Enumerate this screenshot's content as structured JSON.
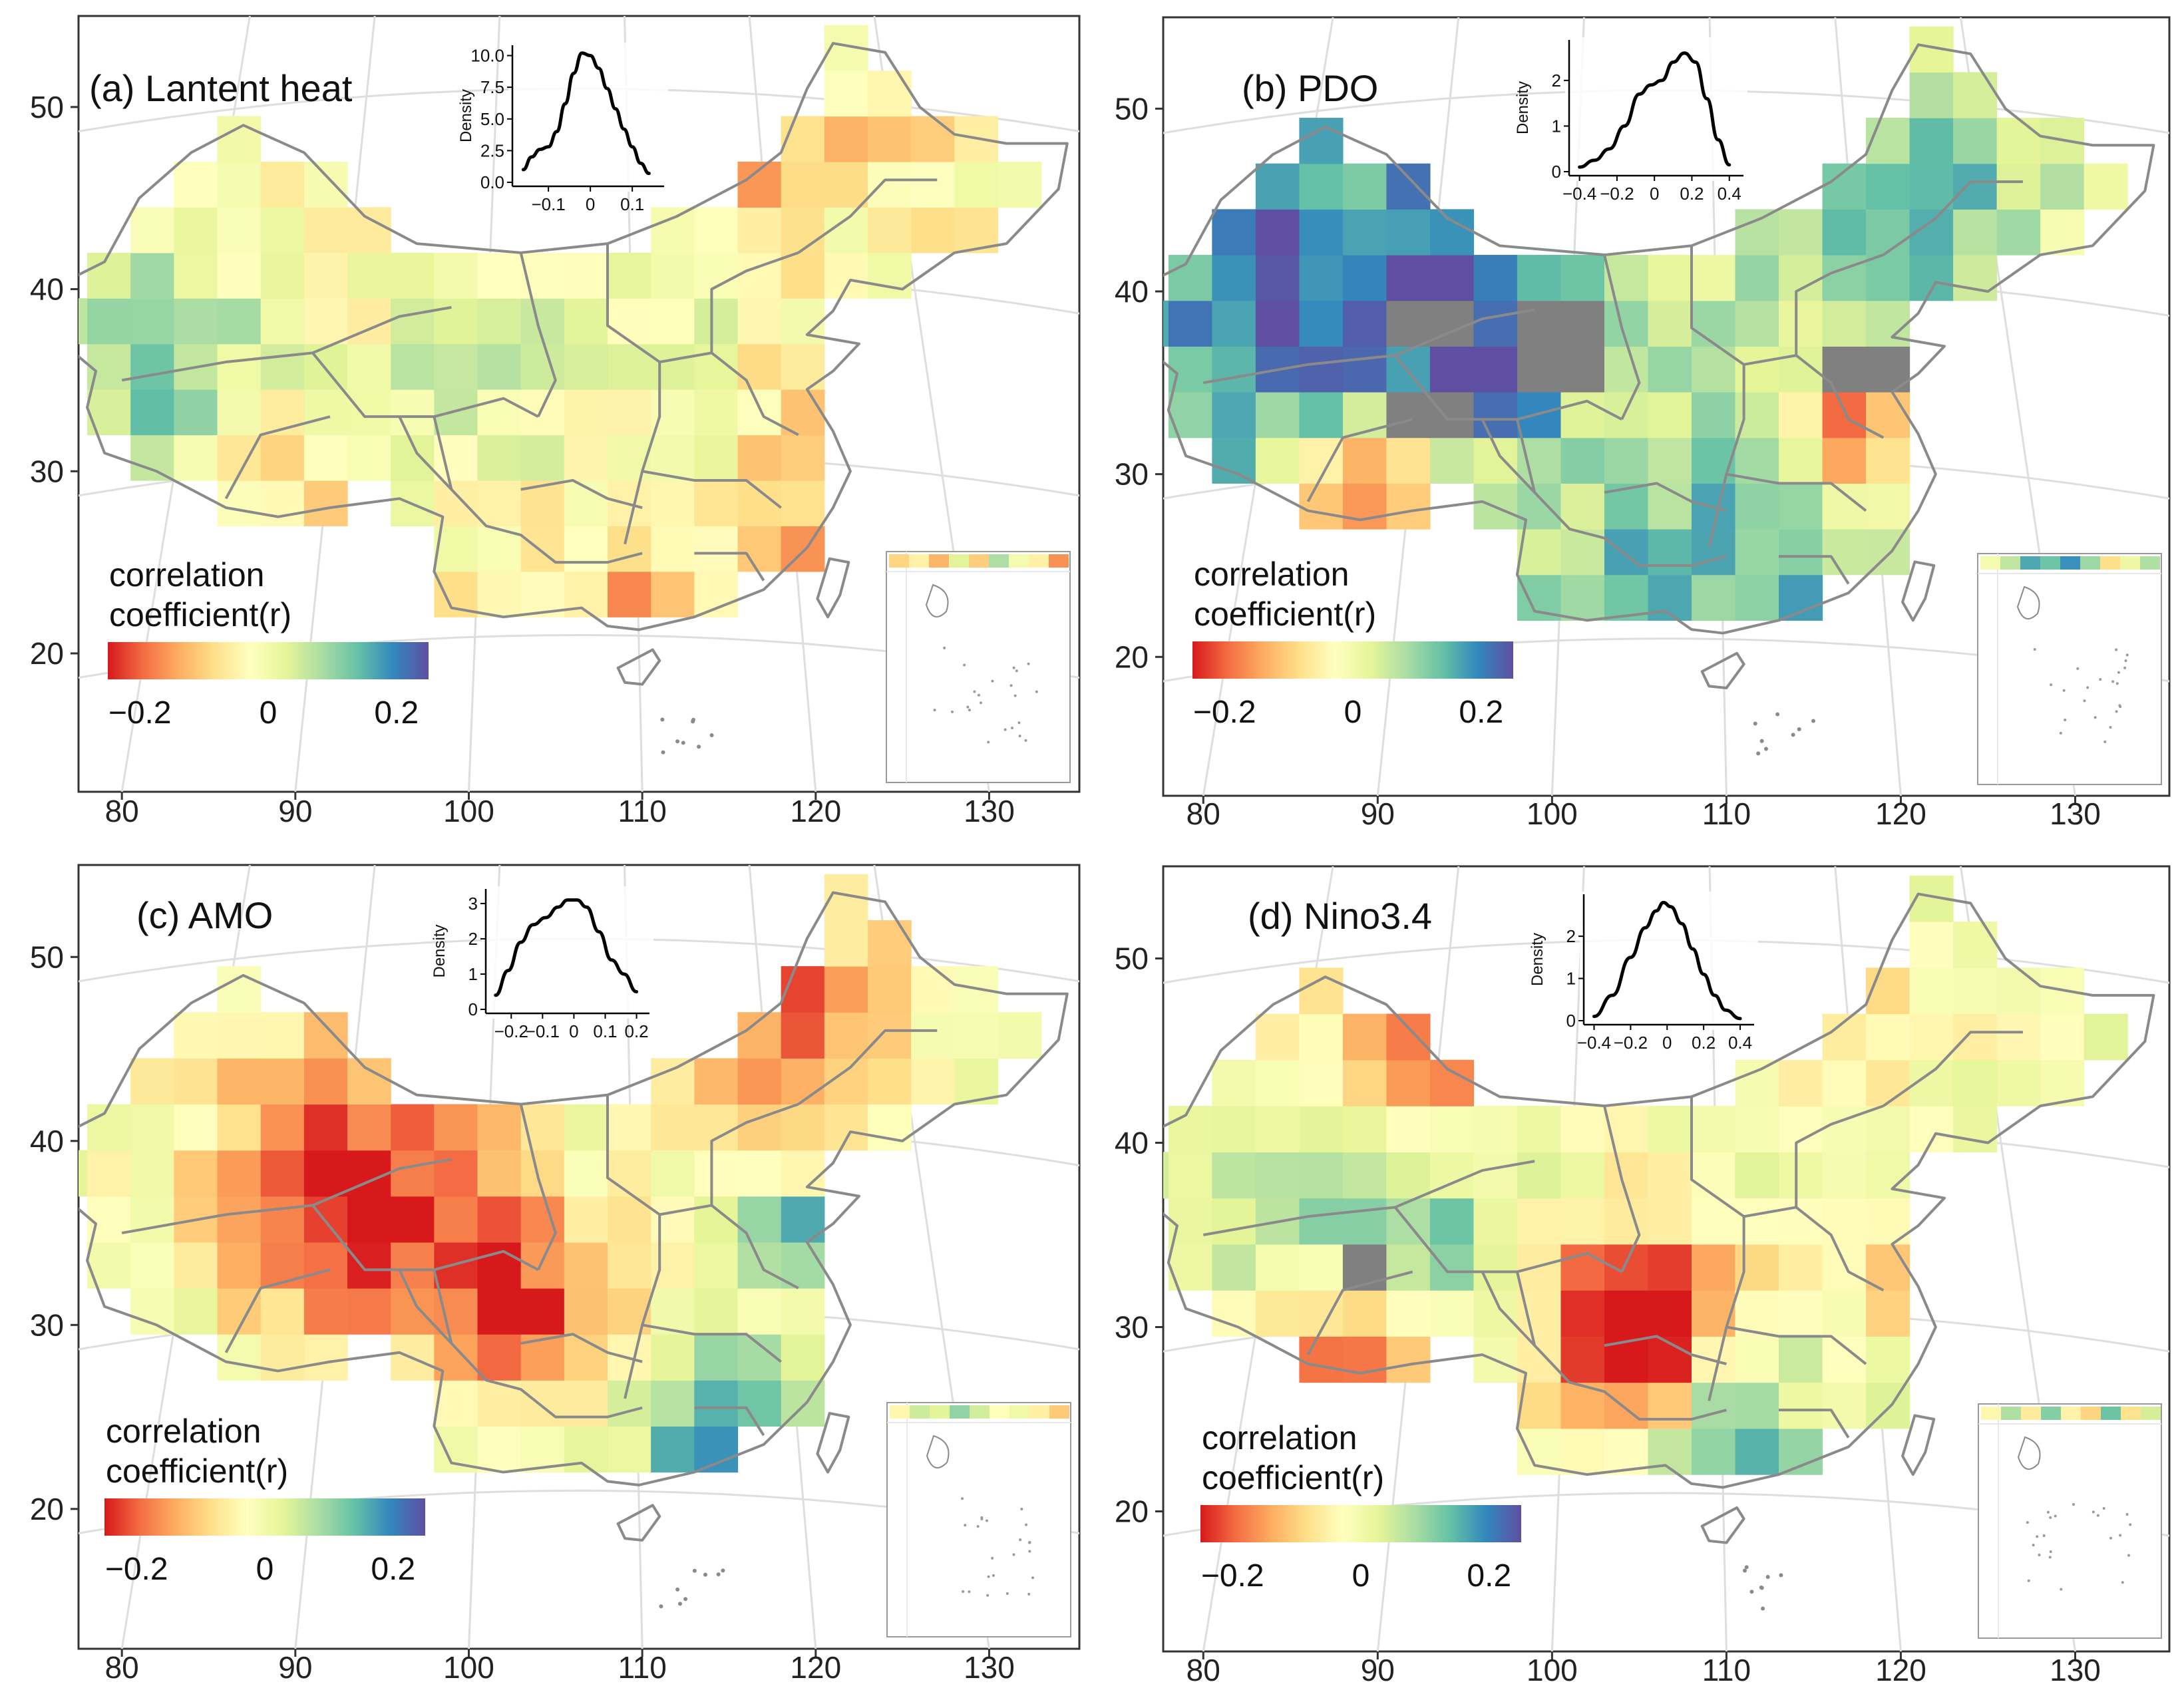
{
  "figure": {
    "colors": {
      "scale": [
        "#d7191c",
        "#f46d43",
        "#fdae61",
        "#fee08b",
        "#ffffbf",
        "#e6f598",
        "#abdda4",
        "#66c2a5",
        "#3288bd",
        "#5e4fa2"
      ],
      "missing": "#808080",
      "boundary": "#8a8a8a",
      "graticule": "#dedede",
      "frame": "#333333"
    },
    "x_ticks": [
      "80",
      "90",
      "100",
      "110",
      "120",
      "130"
    ],
    "y_ticks": [
      "50",
      "40",
      "30",
      "20"
    ],
    "legend": {
      "title_line1": "correlation",
      "title_line2": "coefficient(r)",
      "ticks": [
        "−0.2",
        "0",
        "0.2"
      ],
      "range": [
        -0.25,
        0.25
      ]
    }
  },
  "panels": [
    {
      "title": "(a) Lantent heat",
      "density": {
        "ylabel": "Density",
        "xticks": [
          "−0.1",
          "0",
          "0.1"
        ],
        "yticks": [
          "0.0",
          "2.5",
          "5.0",
          "7.5",
          "10.0"
        ],
        "xrange": [
          -0.17,
          0.16
        ],
        "yrange": [
          0,
          10.5
        ],
        "curve_x": [
          -0.16,
          -0.14,
          -0.12,
          -0.1,
          -0.08,
          -0.06,
          -0.04,
          -0.02,
          0.0,
          0.02,
          0.04,
          0.06,
          0.08,
          0.1,
          0.12,
          0.14
        ],
        "curve_y": [
          1.0,
          2.0,
          2.6,
          2.8,
          4.0,
          6.2,
          8.6,
          10.2,
          10.0,
          9.0,
          7.4,
          5.8,
          4.2,
          2.8,
          1.5,
          0.7
        ]
      }
    },
    {
      "title": "(b) PDO",
      "density": {
        "ylabel": "Density",
        "xticks": [
          "−0.4",
          "−0.2",
          "0",
          "0.2",
          "0.4"
        ],
        "yticks": [
          "0",
          "1",
          "2"
        ],
        "xrange": [
          -0.42,
          0.44
        ],
        "yrange": [
          0,
          2.8
        ],
        "curve_x": [
          -0.4,
          -0.32,
          -0.24,
          -0.16,
          -0.08,
          -0.02,
          0.04,
          0.1,
          0.16,
          0.22,
          0.28,
          0.34,
          0.4
        ],
        "curve_y": [
          0.1,
          0.25,
          0.5,
          1.0,
          1.7,
          1.9,
          2.0,
          2.4,
          2.6,
          2.4,
          1.6,
          0.7,
          0.15
        ]
      }
    },
    {
      "title": "(c) AMO",
      "density": {
        "ylabel": "Density",
        "xticks": [
          "−0.2",
          "−0.1",
          "0",
          "0.1",
          "0.2"
        ],
        "yticks": [
          "0",
          "1",
          "2",
          "3"
        ],
        "xrange": [
          -0.26,
          0.22
        ],
        "yrange": [
          0,
          3.3
        ],
        "curve_x": [
          -0.25,
          -0.21,
          -0.17,
          -0.13,
          -0.09,
          -0.05,
          -0.02,
          0.01,
          0.04,
          0.08,
          0.12,
          0.16,
          0.2
        ],
        "curve_y": [
          0.4,
          1.1,
          1.9,
          2.4,
          2.6,
          2.9,
          3.1,
          3.1,
          2.9,
          2.2,
          1.4,
          1.0,
          0.5
        ]
      }
    },
    {
      "title": "(d) Nino3.4",
      "density": {
        "ylabel": "Density",
        "xticks": [
          "−0.4",
          "−0.2",
          "0",
          "0.2",
          "0.4"
        ],
        "yticks": [
          "0",
          "1",
          "2"
        ],
        "xrange": [
          -0.42,
          0.44
        ],
        "yrange": [
          0,
          2.9
        ],
        "curve_x": [
          -0.4,
          -0.3,
          -0.2,
          -0.12,
          -0.06,
          -0.02,
          0.02,
          0.08,
          0.14,
          0.2,
          0.26,
          0.32,
          0.4
        ],
        "curve_y": [
          0.1,
          0.6,
          1.5,
          2.2,
          2.6,
          2.8,
          2.7,
          2.3,
          1.7,
          1.1,
          0.6,
          0.25,
          0.05
        ]
      }
    }
  ]
}
